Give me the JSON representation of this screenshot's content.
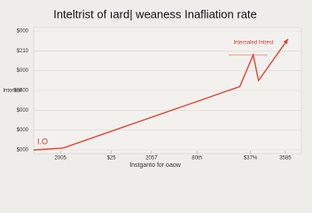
{
  "chart_data": {
    "type": "line",
    "title": "Inteltrist of ıard| weaness Inafliation rate",
    "y_label": "Intonest",
    "x_label": "Instganto for oaow",
    "annotations": [
      "Internaled Intrest",
      "I.O"
    ],
    "x": [
      0,
      11,
      77,
      82,
      84,
      95
    ],
    "series": [
      {
        "color": "#e0453a",
        "values": [
          0,
          0.1,
          3.2,
          4.8,
          3.5,
          5.6
        ]
      }
    ],
    "xlim": [
      0,
      100
    ],
    "ylim": [
      0,
      6
    ],
    "xticks": [
      {
        "value": 10,
        "label": "2005"
      },
      {
        "value": 29,
        "label": "$25"
      },
      {
        "value": 44,
        "label": "2057"
      },
      {
        "value": 61,
        "label": "80th"
      },
      {
        "value": 81,
        "label": "$37%"
      },
      {
        "value": 94,
        "label": "3585"
      }
    ],
    "yticks": [
      {
        "value": 0,
        "label": "$000"
      },
      {
        "value": 1,
        "label": "$000"
      },
      {
        "value": 2,
        "label": "$000"
      },
      {
        "value": 3,
        "label": "$3000"
      },
      {
        "value": 4,
        "label": "$000"
      },
      {
        "value": 5,
        "label": "$210"
      },
      {
        "value": 6,
        "label": "$000"
      }
    ],
    "grid": true
  }
}
